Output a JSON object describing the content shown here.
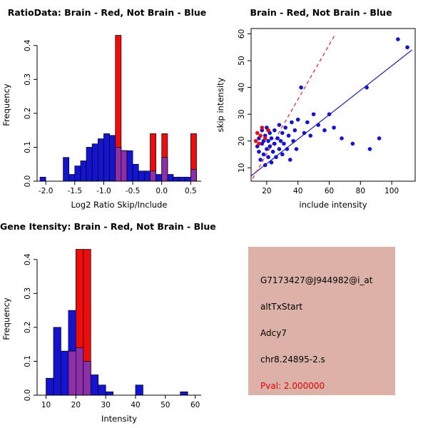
{
  "figure": {
    "background": "#ffffff"
  },
  "info": {
    "background": "#dcb2a8",
    "lines": [
      {
        "label": "probe-id",
        "text": "G7173427@J944982@i_at",
        "color": "#000000"
      },
      {
        "label": "event-type",
        "text": "altTxStart",
        "color": "#000000"
      },
      {
        "label": "gene-symbol",
        "text": "Adcy7",
        "color": "#000000"
      },
      {
        "label": "locus",
        "text": "chr8.24895-2.s",
        "color": "#000000"
      },
      {
        "label": "p-value",
        "text": "Pval: 2.000000",
        "color": "#e00000"
      }
    ]
  },
  "chart_data": [
    {
      "type": "bar",
      "subtype": "overlaid-histogram",
      "title": "RatioData: Brain - Red, Not Brain - Blue",
      "xlabel": "Log2 Ratio Skip/Include",
      "ylabel": "Frequency",
      "xlim": [
        -2.15,
        0.68
      ],
      "ylim": [
        0,
        0.45
      ],
      "xticks": [
        -2.0,
        -1.5,
        -1.0,
        -0.5,
        0.0,
        0.5
      ],
      "xtick_labels": [
        "-2.0",
        "-1.5",
        "-1.0",
        "-0.5",
        "0.0",
        "0.5"
      ],
      "yticks": [
        0,
        0.1,
        0.2,
        0.3,
        0.4
      ],
      "ytick_labels": [
        "0.0",
        "0.1",
        "0.2",
        "0.3",
        "0.4"
      ],
      "bin_start": -2.1,
      "bin_width": 0.1,
      "grid": false,
      "legend": "none",
      "box": false,
      "overlap_color": "#8c2fa8",
      "series": [
        {
          "name": "Not Brain",
          "color": "#1414d0",
          "values": [
            0.012,
            0,
            0,
            0,
            0.07,
            0.02,
            0.045,
            0.06,
            0.1,
            0.11,
            0.125,
            0.14,
            0.135,
            0.1,
            0.09,
            0.09,
            0.05,
            0.03,
            0.03,
            0.03,
            0.02,
            0.07,
            0.02,
            0.012,
            0.012,
            0.012,
            0.035
          ]
        },
        {
          "name": "Brain",
          "color": "#ee0d0d",
          "values": [
            0,
            0,
            0,
            0,
            0,
            0,
            0,
            0,
            0,
            0,
            0,
            0,
            0,
            0.43,
            0.09,
            0,
            0,
            0,
            0,
            0.14,
            0,
            0.14,
            0,
            0,
            0,
            0,
            0.14
          ]
        }
      ]
    },
    {
      "type": "scatter",
      "title": "Brain - Red, Not Brain - Blue",
      "xlabel": "include intensity",
      "ylabel": "skip intensity",
      "xlim": [
        10,
        115
      ],
      "ylim": [
        5,
        62
      ],
      "xticks": [
        20,
        40,
        60,
        80,
        100
      ],
      "yticks": [
        10,
        20,
        30,
        40,
        50,
        60
      ],
      "grid": false,
      "legend": "none",
      "box": true,
      "series": [
        {
          "name": "Not Brain",
          "color": "#1414d0",
          "points": [
            [
              14,
              18
            ],
            [
              15,
              16
            ],
            [
              15,
              21
            ],
            [
              16,
              13
            ],
            [
              17,
              19
            ],
            [
              17,
              24
            ],
            [
              18,
              15
            ],
            [
              18,
              20
            ],
            [
              19,
              11
            ],
            [
              19,
              22
            ],
            [
              20,
              17
            ],
            [
              20,
              25
            ],
            [
              21,
              14
            ],
            [
              21,
              20
            ],
            [
              22,
              18
            ],
            [
              22,
              23
            ],
            [
              23,
              12
            ],
            [
              23,
              21
            ],
            [
              24,
              16
            ],
            [
              25,
              19
            ],
            [
              25,
              24
            ],
            [
              26,
              14
            ],
            [
              27,
              21
            ],
            [
              28,
              17
            ],
            [
              28,
              26
            ],
            [
              29,
              20
            ],
            [
              30,
              15
            ],
            [
              30,
              23
            ],
            [
              31,
              19
            ],
            [
              32,
              25
            ],
            [
              33,
              17
            ],
            [
              34,
              22
            ],
            [
              35,
              13
            ],
            [
              36,
              27
            ],
            [
              37,
              20
            ],
            [
              38,
              24
            ],
            [
              39,
              17
            ],
            [
              40,
              28
            ],
            [
              42,
              40
            ],
            [
              44,
              23
            ],
            [
              46,
              27
            ],
            [
              48,
              22
            ],
            [
              50,
              30
            ],
            [
              53,
              26
            ],
            [
              57,
              24
            ],
            [
              60,
              30
            ],
            [
              63,
              25
            ],
            [
              68,
              21
            ],
            [
              75,
              19
            ],
            [
              84,
              40
            ],
            [
              86,
              17
            ],
            [
              92,
              21
            ],
            [
              104,
              58
            ],
            [
              110,
              55
            ]
          ]
        },
        {
          "name": "Brain",
          "color": "#e01010",
          "points": [
            [
              13,
              20
            ],
            [
              14,
              23
            ],
            [
              15,
              19
            ],
            [
              16,
              22
            ],
            [
              17,
              25
            ],
            [
              19,
              21
            ],
            [
              21,
              24
            ]
          ]
        }
      ],
      "lines": [
        {
          "name": "not-brain-fit",
          "color": "#2323a8",
          "dash": false,
          "from": [
            10,
            7
          ],
          "to": [
            113,
            54
          ]
        },
        {
          "name": "brain-fit",
          "color": "#e02020",
          "dash": true,
          "from": [
            11,
            6
          ],
          "to": [
            64,
            60
          ]
        }
      ]
    },
    {
      "type": "bar",
      "subtype": "overlaid-histogram",
      "title": "Gene Itensity: Brain - Red, Not Brain - Blue",
      "xlabel": "Intensity",
      "ylabel": "Frequency",
      "xlim": [
        7,
        62
      ],
      "ylim": [
        0,
        0.45
      ],
      "xticks": [
        10,
        20,
        30,
        40,
        50,
        60
      ],
      "xtick_labels": [
        "10",
        "20",
        "30",
        "40",
        "50",
        "60"
      ],
      "yticks": [
        0,
        0.1,
        0.2,
        0.3,
        0.4
      ],
      "ytick_labels": [
        "0.0",
        "0.1",
        "0.2",
        "0.3",
        "0.4"
      ],
      "bin_start": 10,
      "bin_width": 2.5,
      "grid": false,
      "legend": "none",
      "box": false,
      "overlap_color": "#8c2fa8",
      "series": [
        {
          "name": "Not Brain",
          "color": "#1414d0",
          "values": [
            0.05,
            0.2,
            0.13,
            0.25,
            0.14,
            0.1,
            0.06,
            0.03,
            0.01,
            0,
            0,
            0,
            0.03,
            0,
            0,
            0,
            0,
            0,
            0.01,
            0
          ]
        },
        {
          "name": "Brain",
          "color": "#ee0d0d",
          "values": [
            0,
            0,
            0,
            0.13,
            0.43,
            0.43,
            0,
            0,
            0,
            0,
            0,
            0,
            0,
            0,
            0,
            0,
            0,
            0,
            0,
            0
          ]
        }
      ]
    }
  ]
}
